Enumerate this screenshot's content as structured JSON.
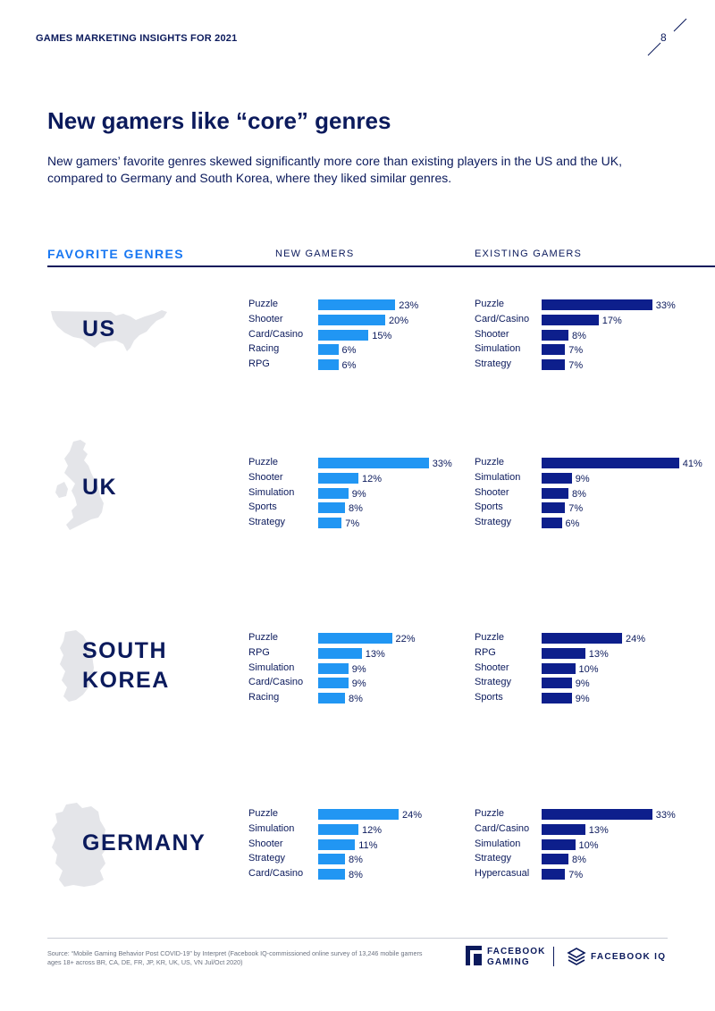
{
  "header": {
    "title": "GAMES MARKETING INSIGHTS FOR 2021",
    "page_number": "8"
  },
  "title": "New gamers like “core” genres",
  "subtitle": "New gamers’ favorite genres skewed significantly more core than existing players in the US and the UK, compared to Germany and South Korea, where they liked similar genres.",
  "section": {
    "label": "FAVORITE GENRES",
    "new_col": "NEW GAMERS",
    "existing_col": "EXISTING GAMERS"
  },
  "colors": {
    "new_gamers": "#2196f3",
    "existing_gamers": "#0d1f8c",
    "map": "#e4e5e9",
    "text": "#0b1a5c"
  },
  "chart_data": [
    {
      "type": "bar",
      "country": "US",
      "country_lines": [
        "US"
      ],
      "map_icon": "us-map-icon",
      "new_gamers": {
        "categories": [
          "Puzzle",
          "Shooter",
          "Card/Casino",
          "Racing",
          "RPG"
        ],
        "values": [
          23,
          20,
          15,
          6,
          6
        ],
        "labels": [
          "23%",
          "20%",
          "15%",
          "6%",
          "6%"
        ]
      },
      "existing_gamers": {
        "categories": [
          "Puzzle",
          "Card/Casino",
          "Shooter",
          "Simulation",
          "Strategy"
        ],
        "values": [
          33,
          17,
          8,
          7,
          7
        ],
        "labels": [
          "33%",
          "17%",
          "8%",
          "7%",
          "7%"
        ]
      }
    },
    {
      "type": "bar",
      "country": "UK",
      "country_lines": [
        "UK"
      ],
      "map_icon": "uk-map-icon",
      "new_gamers": {
        "categories": [
          "Puzzle",
          "Shooter",
          "Simulation",
          "Sports",
          "Strategy"
        ],
        "values": [
          33,
          12,
          9,
          8,
          7
        ],
        "labels": [
          "33%",
          "12%",
          "9%",
          "8%",
          "7%"
        ]
      },
      "existing_gamers": {
        "categories": [
          "Puzzle",
          "Simulation",
          "Shooter",
          "Sports",
          "Strategy"
        ],
        "values": [
          41,
          9,
          8,
          7,
          6
        ],
        "labels": [
          "41%",
          "9%",
          "8%",
          "7%",
          "6%"
        ]
      }
    },
    {
      "type": "bar",
      "country": "SOUTH KOREA",
      "country_lines": [
        "SOUTH",
        "KOREA"
      ],
      "map_icon": "south-korea-map-icon",
      "new_gamers": {
        "categories": [
          "Puzzle",
          "RPG",
          "Simulation",
          "Card/Casino",
          "Racing"
        ],
        "values": [
          22,
          13,
          9,
          9,
          8
        ],
        "labels": [
          "22%",
          "13%",
          "9%",
          "9%",
          "8%"
        ]
      },
      "existing_gamers": {
        "categories": [
          "Puzzle",
          "RPG",
          "Shooter",
          "Strategy",
          "Sports"
        ],
        "values": [
          24,
          13,
          10,
          9,
          9
        ],
        "labels": [
          "24%",
          "13%",
          "10%",
          "9%",
          "9%"
        ]
      }
    },
    {
      "type": "bar",
      "country": "GERMANY",
      "country_lines": [
        "GERMANY"
      ],
      "map_icon": "germany-map-icon",
      "new_gamers": {
        "categories": [
          "Puzzle",
          "Simulation",
          "Shooter",
          "Strategy",
          "Card/Casino"
        ],
        "values": [
          24,
          12,
          11,
          8,
          8
        ],
        "labels": [
          "24%",
          "12%",
          "11%",
          "8%",
          "8%"
        ]
      },
      "existing_gamers": {
        "categories": [
          "Puzzle",
          "Card/Casino",
          "Simulation",
          "Strategy",
          "Hypercasual"
        ],
        "values": [
          33,
          13,
          10,
          8,
          7
        ],
        "labels": [
          "33%",
          "13%",
          "10%",
          "8%",
          "7%"
        ]
      }
    }
  ],
  "footer": {
    "source": "Source: “Mobile Gaming Behavior Post COVID-19” by Interpret (Facebook IQ-commissioned online survey of 13,246 mobile gamers ages 18+ across BR, CA, DE, FR, JP, KR, UK, US, VN Jul/Oct 2020)",
    "logo_gaming": [
      "FACEBOOK",
      "GAMING"
    ],
    "logo_iq": "FACEBOOK IQ"
  }
}
